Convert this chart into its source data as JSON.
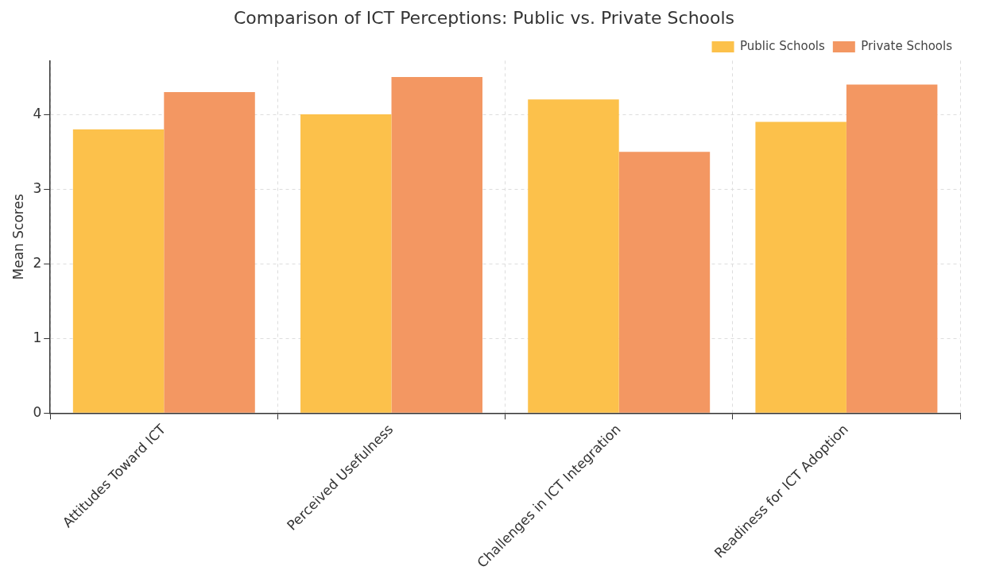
{
  "chart_data": {
    "type": "bar",
    "title": "Comparison of ICT Perceptions: Public vs. Private Schools",
    "ylabel": "Mean Scores",
    "categories": [
      "Attitudes Toward ICT",
      "Perceived Usefulness",
      "Challenges in ICT Integration",
      "Readiness for ICT Adoption"
    ],
    "series": [
      {
        "name": "Public Schools",
        "color": "#fcc14b",
        "values": [
          3.8,
          4.0,
          4.2,
          3.9
        ]
      },
      {
        "name": "Private Schools",
        "color": "#f39762",
        "values": [
          4.3,
          4.5,
          3.5,
          4.4
        ]
      }
    ],
    "ylim": [
      0,
      4.72
    ],
    "yticks": [
      0,
      1,
      2,
      3,
      4
    ],
    "grid": true,
    "legend": "top right"
  }
}
